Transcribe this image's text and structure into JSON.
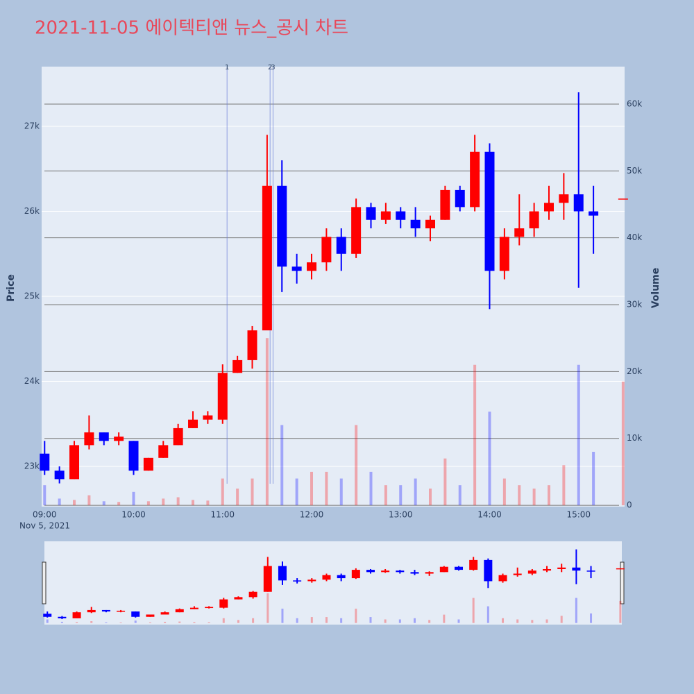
{
  "chart_data": {
    "type": "candlestick",
    "title": "2021-11-05 에이텍티앤 뉴스_공시 차트",
    "y_title": "Price",
    "y2_title": "Volume",
    "x": [
      "09:00",
      "09:10",
      "09:20",
      "09:30",
      "09:40",
      "09:50",
      "10:00",
      "10:10",
      "10:20",
      "10:30",
      "10:40",
      "10:50",
      "11:00",
      "11:10",
      "11:20",
      "11:30",
      "11:40",
      "11:50",
      "12:00",
      "12:10",
      "12:20",
      "12:30",
      "12:40",
      "12:50",
      "13:00",
      "13:10",
      "13:20",
      "13:30",
      "13:40",
      "13:50",
      "14:00",
      "14:10",
      "14:20",
      "14:30",
      "14:40",
      "14:50",
      "15:00",
      "15:10",
      "15:30"
    ],
    "open": [
      23150,
      22950,
      22850,
      23250,
      23400,
      23300,
      23300,
      22950,
      23100,
      23250,
      23450,
      23550,
      23550,
      24100,
      24250,
      24600,
      26300,
      25350,
      25300,
      25400,
      25700,
      25500,
      26050,
      25900,
      26000,
      25900,
      25800,
      25900,
      26250,
      26050,
      26700,
      25300,
      25700,
      25800,
      26000,
      26100,
      26200,
      26000,
      26150
    ],
    "high": [
      23300,
      23000,
      23300,
      23600,
      23400,
      23400,
      23300,
      23100,
      23300,
      23500,
      23650,
      23650,
      24200,
      24300,
      24650,
      26900,
      26600,
      25500,
      25500,
      25800,
      25800,
      26150,
      26100,
      26100,
      26050,
      26050,
      25950,
      26300,
      26300,
      26900,
      26800,
      25800,
      26200,
      26100,
      26300,
      26450,
      27400,
      26300,
      26150
    ],
    "low": [
      22900,
      22800,
      22850,
      23200,
      23250,
      23250,
      22900,
      22950,
      23100,
      23250,
      23450,
      23500,
      23500,
      24100,
      24150,
      24600,
      25050,
      25150,
      25200,
      25300,
      25300,
      25450,
      25800,
      25850,
      25800,
      25700,
      25650,
      25900,
      26000,
      26000,
      24850,
      25200,
      25600,
      25700,
      25900,
      25900,
      25100,
      25500,
      26150
    ],
    "close": [
      22950,
      22850,
      23250,
      23400,
      23300,
      23350,
      22950,
      23100,
      23250,
      23450,
      23550,
      23600,
      24100,
      24250,
      24600,
      26300,
      25350,
      25300,
      25400,
      25700,
      25500,
      26050,
      25900,
      26000,
      25900,
      25800,
      25900,
      26250,
      26050,
      26700,
      25300,
      25700,
      25800,
      26000,
      26100,
      26200,
      26000,
      25950,
      26150
    ],
    "volume": [
      3000,
      1000,
      800,
      1500,
      600,
      500,
      2000,
      600,
      1000,
      1200,
      800,
      700,
      4000,
      2500,
      4000,
      25000,
      12000,
      4000,
      5000,
      5000,
      4000,
      12000,
      5000,
      3000,
      3000,
      4000,
      2500,
      7000,
      3000,
      21000,
      14000,
      4000,
      3000,
      2500,
      3000,
      6000,
      21000,
      8000,
      18500
    ],
    "increasing_color": "#ff0000",
    "decreasing_color": "#0000ff",
    "xlim": [
      "08:58",
      "15:31"
    ],
    "xticks": [
      "09:00",
      "10:00",
      "11:00",
      "12:00",
      "13:00",
      "14:00",
      "15:00"
    ],
    "x_date_label": "Nov 5, 2021",
    "ylim": [
      22527,
      27702
    ],
    "yticks": [
      {
        "value": 23000,
        "label": "23k"
      },
      {
        "value": 24000,
        "label": "24k"
      },
      {
        "value": 25000,
        "label": "25k"
      },
      {
        "value": 26000,
        "label": "26k"
      },
      {
        "value": 27000,
        "label": "27k"
      }
    ],
    "y2lim": [
      -200,
      65600
    ],
    "y2ticks": [
      0,
      {
        "value": 10000,
        "label": "10k"
      },
      {
        "value": 20000,
        "label": "20k"
      },
      {
        "value": 30000,
        "label": "30k"
      },
      {
        "value": 40000,
        "label": "40k"
      },
      {
        "value": 50000,
        "label": "50k"
      },
      {
        "value": 60000,
        "label": "60k"
      }
    ],
    "news": [
      {
        "x": "11:03",
        "label": "1"
      },
      {
        "x": "11:32",
        "label": "2"
      },
      {
        "x": "11:34",
        "label": "3"
      }
    ],
    "grid": true,
    "range_slider": true
  }
}
